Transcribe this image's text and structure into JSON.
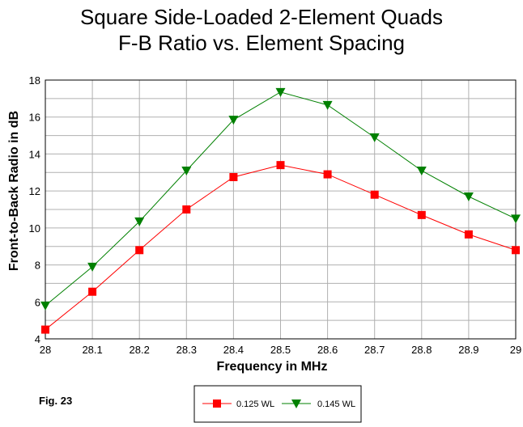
{
  "chart_data": {
    "type": "line",
    "title": [
      "Square Side-Loaded 2-Element Quads",
      "F-B Ratio vs. Element Spacing"
    ],
    "xlabel": "Frequency in MHz",
    "ylabel": "Front-to-Back Radio in dB",
    "x": [
      28,
      28.1,
      28.2,
      28.3,
      28.4,
      28.5,
      28.6,
      28.7,
      28.8,
      28.9,
      29
    ],
    "x_tick_labels": [
      "28",
      "28.1",
      "28.2",
      "28.3",
      "28.4",
      "28.5",
      "28.6",
      "28.7",
      "28.8",
      "28.9",
      "29"
    ],
    "y_ticks": [
      4,
      6,
      8,
      10,
      12,
      14,
      16,
      18
    ],
    "ylim": [
      4,
      18
    ],
    "grid": true,
    "legend_position": "bottom-center",
    "series": [
      {
        "name": "0.125 WL",
        "marker": "square",
        "color": "#ff0000",
        "line_color": "#ff0000",
        "values": [
          4.5,
          6.55,
          8.8,
          11.0,
          12.75,
          13.4,
          12.9,
          11.8,
          10.7,
          9.65,
          8.8
        ]
      },
      {
        "name": "0.145 WL",
        "marker": "triangle-down",
        "color": "#008000",
        "line_color": "#008000",
        "values": [
          5.8,
          7.9,
          10.35,
          13.1,
          15.85,
          17.35,
          16.65,
          14.9,
          13.1,
          11.7,
          10.5
        ]
      }
    ]
  },
  "figure_label": "Fig. 23"
}
